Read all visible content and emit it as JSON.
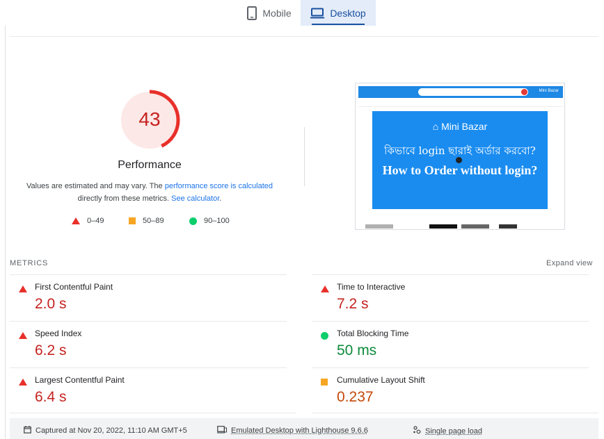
{
  "tabs": [
    {
      "label": "Mobile",
      "icon": "phone-icon",
      "active": false
    },
    {
      "label": "Desktop",
      "icon": "laptop-icon",
      "active": true
    }
  ],
  "score": {
    "value": "43",
    "fraction": 0.43,
    "color": "#e8302b",
    "title": "Performance",
    "desc_prefix": "Values are estimated and may vary. The ",
    "desc_link1": "performance score is calculated",
    "desc_middle": " directly from these metrics. ",
    "desc_link2": "See calculator",
    "desc_suffix": "."
  },
  "legend": [
    {
      "shape": "triangle",
      "color": "#e8302b",
      "label": "0–49"
    },
    {
      "shape": "square",
      "color": "#f6a623",
      "label": "50–89"
    },
    {
      "shape": "circle",
      "color": "#0cce6b",
      "label": "90–100"
    }
  ],
  "thumbnail": {
    "brand": "Mini Bazar",
    "header_brand": "Mini Bazar",
    "line1": "কিভাবে login ছারাই অর্ডার করবো?",
    "line2": "How to Order without login?"
  },
  "metrics": {
    "label": "METRICS",
    "expand": "Expand view",
    "items": [
      {
        "name": "First Contentful Paint",
        "value": "2.0 s",
        "status": "red"
      },
      {
        "name": "Time to Interactive",
        "value": "7.2 s",
        "status": "red"
      },
      {
        "name": "Speed Index",
        "value": "6.2 s",
        "status": "red"
      },
      {
        "name": "Total Blocking Time",
        "value": "50 ms",
        "status": "green"
      },
      {
        "name": "Largest Contentful Paint",
        "value": "6.4 s",
        "status": "red"
      },
      {
        "name": "Cumulative Layout Shift",
        "value": "0.237",
        "status": "orange"
      }
    ]
  },
  "footer": {
    "captured": "Captured at Nov 20, 2022, 11:10 AM GMT+5",
    "emulated": "Emulated Desktop with Lighthouse 9.6.6",
    "load": "Single page load"
  }
}
